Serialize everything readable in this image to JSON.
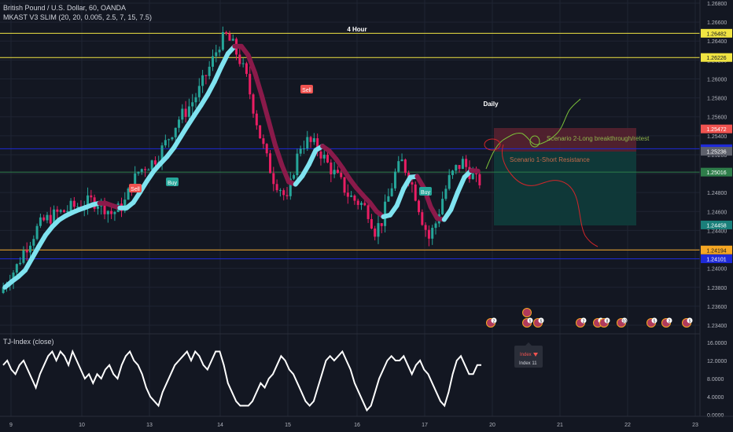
{
  "main_pane": {
    "symbol_title": "British Pound / U.S. Dollar, 60, OANDA",
    "indicator_title": "MKAST V3 SLIM (20, 20, 0.005, 2.5, 7, 15, 7.5)"
  },
  "sub_pane": {
    "indicator_title": "TJ-Index (close)",
    "tooltip": {
      "line1": "Index",
      "line2": "Index 11"
    }
  },
  "colors": {
    "background": "#131722",
    "candle_up": "#26a69a",
    "candle_down": "#e91e63",
    "trend_up": "#7fe3f0",
    "trend_down": "#8a1a4a",
    "yellow_line": "#f0e442",
    "blue_line": "#1e2ad8",
    "green_line": "#2e7d4a",
    "orange_line": "#f5a623"
  },
  "chart_data": [
    {
      "type": "candlestick",
      "title": "British Pound / U.S. Dollar, 60, OANDA",
      "x_ticks": [
        "9",
        "10",
        "13",
        "14",
        "15",
        "16",
        "17",
        "20",
        "21",
        "22",
        "23"
      ],
      "y_ticks": [
        "1.26800",
        "1.26600",
        "1.26400",
        "1.26200",
        "1.26000",
        "1.25800",
        "1.25600",
        "1.25400",
        "1.25200",
        "1.25000",
        "1.24800",
        "1.24600",
        "1.24400",
        "1.24200",
        "1.24000",
        "1.23800",
        "1.23600",
        "1.23400"
      ],
      "ylim": [
        1.2335,
        1.2685
      ],
      "series": [
        {
          "name": "Close (approx.)",
          "values": [
            1.238,
            1.2392,
            1.2402,
            1.2418,
            1.243,
            1.2442,
            1.245,
            1.2454,
            1.2458,
            1.246,
            1.2464,
            1.2466,
            1.2468,
            1.2471,
            1.247,
            1.2465,
            1.2458,
            1.2462,
            1.247,
            1.2488,
            1.2502,
            1.2508,
            1.2512,
            1.252,
            1.2532,
            1.2545,
            1.2558,
            1.2566,
            1.2576,
            1.2588,
            1.2604,
            1.262,
            1.2638,
            1.2645,
            1.2635,
            1.262,
            1.26,
            1.257,
            1.254,
            1.2515,
            1.2495,
            1.2485,
            1.247,
            1.2505,
            1.253,
            1.2534,
            1.253,
            1.2522,
            1.251,
            1.25,
            1.249,
            1.2478,
            1.2472,
            1.2468,
            1.246,
            1.244,
            1.245,
            1.2475,
            1.25,
            1.2512,
            1.2498,
            1.2478,
            1.2452,
            1.2432,
            1.2448,
            1.2474,
            1.2494,
            1.2505,
            1.2512,
            1.2502,
            1.2492
          ]
        }
      ],
      "annotations": {
        "price_labels": [
          {
            "text": "1.26482",
            "value": 1.26482,
            "kind": "yellow"
          },
          {
            "text": "1.26226",
            "value": 1.26226,
            "kind": "yellow"
          },
          {
            "text": "1.25472",
            "value": 1.25472,
            "kind": "red"
          },
          {
            "text": "1.25263",
            "value": 1.25263,
            "kind": "blue"
          },
          {
            "text": "1.25236",
            "value": 1.25236,
            "kind": "grey"
          },
          {
            "text": "1.25016",
            "value": 1.25016,
            "kind": "green"
          },
          {
            "text": "1.24458",
            "value": 1.24458,
            "kind": "teal"
          },
          {
            "text": "1.24194",
            "value": 1.24194,
            "kind": "orange"
          },
          {
            "text": "1.24101",
            "value": 1.24101,
            "kind": "blue"
          }
        ],
        "texts": [
          "4 Hour",
          "Daily",
          "Scenario 2-Long breakthrough/retest",
          "Scenario 1-Short Resistance"
        ],
        "signals": [
          {
            "text": "Sell",
            "kind": "sell"
          },
          {
            "text": "Buy",
            "kind": "buy"
          },
          {
            "text": "Sell",
            "kind": "sell"
          },
          {
            "text": "Buy",
            "kind": "buy"
          }
        ],
        "event_badges": [
          "2",
          "5",
          "5",
          "2",
          "2",
          "8",
          "10",
          "5",
          "2",
          "5"
        ]
      }
    },
    {
      "type": "line",
      "title": "TJ-Index (close)",
      "y_ticks": [
        "16.0000",
        "12.0000",
        "8.0000",
        "4.0000",
        "0.0000"
      ],
      "ylim": [
        0,
        16
      ],
      "series": [
        {
          "name": "TJ-Index",
          "values": [
            11,
            12,
            10,
            9,
            11,
            12,
            10,
            8,
            6,
            9,
            11,
            13,
            14,
            12,
            14,
            13,
            11,
            14,
            12,
            10,
            8,
            9,
            7,
            9,
            8,
            10,
            11,
            9,
            8,
            11,
            13,
            14,
            12,
            11,
            9,
            6,
            4,
            3,
            2,
            5,
            7,
            9,
            11,
            12,
            13,
            14,
            12,
            14,
            13,
            11,
            10,
            12,
            14,
            14,
            11,
            7,
            5,
            3,
            2,
            2,
            2,
            3,
            5,
            7,
            6,
            8,
            9,
            11,
            13,
            12,
            10,
            9,
            7,
            5,
            3,
            2,
            3,
            6,
            9,
            12,
            13,
            12,
            13,
            14,
            12,
            10,
            7,
            5,
            3,
            1,
            2,
            5,
            8,
            10,
            12,
            13,
            12,
            12,
            13,
            11,
            9,
            11,
            12,
            10,
            9,
            7,
            5,
            3,
            2,
            5,
            9,
            12,
            13,
            11,
            9,
            9,
            11,
            11
          ]
        }
      ]
    }
  ]
}
